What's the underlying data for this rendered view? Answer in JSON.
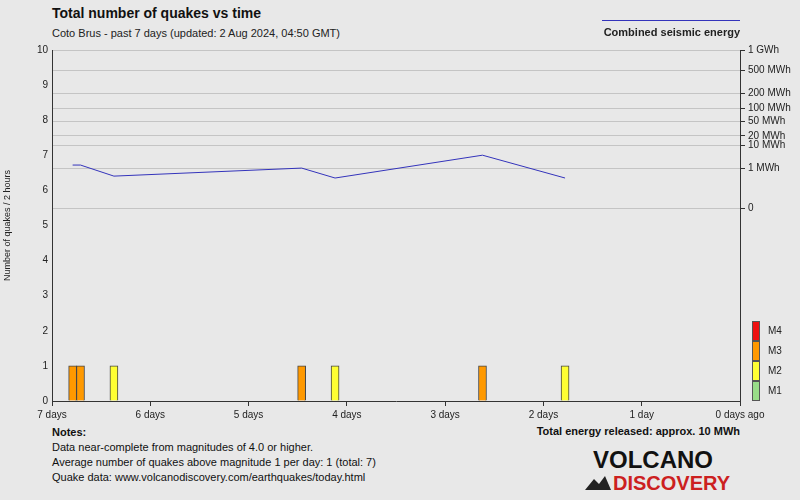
{
  "chart_data": {
    "type": "bar",
    "title": "Total number of quakes vs time",
    "subtitle": "Coto Brus - past 7 days (updated: 2 Aug 2024, 04:50 GMT)",
    "y_label": "Number of quakes / 2 hours",
    "x": [
      6.79,
      6.71,
      6.37,
      4.46,
      4.12,
      2.62,
      1.78
    ],
    "xlim": [
      7,
      0
    ],
    "xticks": [
      {
        "value": 7,
        "label": "7 days"
      },
      {
        "value": 6,
        "label": "6 days"
      },
      {
        "value": 5,
        "label": "5 days"
      },
      {
        "value": 4,
        "label": "4 days"
      },
      {
        "value": 3,
        "label": "3 days"
      },
      {
        "value": 2,
        "label": "2 days"
      },
      {
        "value": 1,
        "label": "1 day"
      },
      {
        "value": 0,
        "label": "0 days ago"
      }
    ],
    "ylim": [
      0,
      10
    ],
    "yticks": [
      0,
      1,
      2,
      3,
      4,
      5,
      6,
      7,
      8,
      9,
      10
    ],
    "y2lim": [
      -2700,
      1000
    ],
    "y2ticks": [
      {
        "value": 1000,
        "label": "1 GWh"
      },
      {
        "value": 500,
        "label": "500 MWh"
      },
      {
        "value": 200,
        "label": "200 MWh"
      },
      {
        "value": 100,
        "label": "100 MWh"
      },
      {
        "value": 50,
        "label": "50 MWh"
      },
      {
        "value": 20,
        "label": "20 MWh"
      },
      {
        "value": 10,
        "label": "10 MWh"
      },
      {
        "value": 1,
        "label": "1 MWh"
      },
      0
    ],
    "grid": true,
    "stacked": true,
    "series": [
      {
        "name": "M4",
        "color": "#ee1111",
        "values": [
          null,
          null,
          null,
          null,
          null,
          null,
          null
        ]
      },
      {
        "name": "M3",
        "color": "#ff9900",
        "values": [
          1,
          1,
          null,
          1,
          null,
          1,
          null
        ]
      },
      {
        "name": "M2",
        "color": "#ffff33",
        "values": [
          null,
          null,
          1,
          null,
          1,
          null,
          1
        ]
      },
      {
        "name": "M1",
        "color": "#99dd88",
        "values": [
          null,
          null,
          null,
          null,
          null,
          null,
          null
        ]
      },
      {
        "name": "Combined seismic energy",
        "type": "line",
        "axis": "y2",
        "color": "#3333bb",
        "marker": "none",
        "line_style": "solid",
        "values": [
          1.5,
          1.5,
          0.34,
          1.04,
          0.25,
          4.2,
          0.25
        ]
      }
    ],
    "notes": [
      "Notes:",
      "Data near-complete from magnitudes of 4.0 or higher.",
      "Average number of quakes above magnitude 1 per day: 1 (total: 7)",
      "Quake data: www.volcanodiscovery.com/earthquakes/today.html"
    ],
    "total_energy": "Total energy released: approx. 10 MWh",
    "logo": [
      "VOLCANO",
      "DISCOVERY"
    ]
  }
}
